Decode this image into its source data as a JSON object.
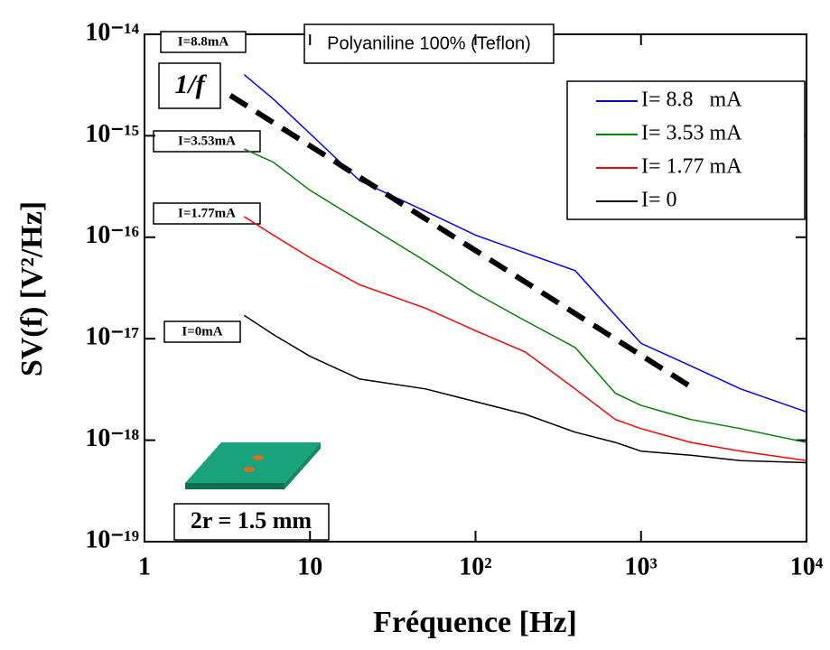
{
  "chart_data": {
    "type": "line",
    "xlabel": "Fréquence [Hz]",
    "ylabel": "SV(f) [V²/Hz]",
    "log_x": true,
    "log_y": true,
    "xlim": [
      1,
      10000
    ],
    "ylim": [
      1e-19,
      1e-14
    ],
    "xticks": [
      1,
      10,
      {
        "value": 100,
        "label": "10²"
      },
      {
        "value": 1000,
        "label": "10³"
      },
      {
        "value": 10000,
        "label": "10⁴"
      }
    ],
    "yticks": [
      {
        "value": 1e-19,
        "label": "10⁻¹⁹"
      },
      {
        "value": 1e-18,
        "label": "10⁻¹⁸"
      },
      {
        "value": 1e-17,
        "label": "10⁻¹⁷"
      },
      {
        "value": 1e-16,
        "label": "10⁻¹⁶"
      },
      {
        "value": 1e-15,
        "label": "10⁻¹⁵"
      },
      {
        "value": 1e-14,
        "label": "10⁻¹⁴"
      }
    ],
    "x": [
      4,
      6,
      10,
      20,
      50,
      100,
      200,
      400,
      700,
      1000,
      2000,
      4000,
      10000
    ],
    "series": [
      {
        "name": "I= 8.8   mA",
        "color": "#0000ff",
        "values": [
          4e-15,
          2.3e-15,
          1.05e-15,
          3.6e-16,
          1.8e-16,
          1.05e-16,
          7e-17,
          4.7e-17,
          1.7e-17,
          9e-18,
          5.4e-18,
          3.2e-18,
          1.9e-18
        ]
      },
      {
        "name": "I= 3.53 mA",
        "color": "#008000",
        "values": [
          7.4e-16,
          5.5e-16,
          2.9e-16,
          1.45e-16,
          5.8e-17,
          2.8e-17,
          1.5e-17,
          8.2e-18,
          2.9e-18,
          2.2e-18,
          1.6e-18,
          1.3e-18,
          9.5e-19
        ]
      },
      {
        "name": "I= 1.77 mA",
        "color": "#ff0000",
        "values": [
          1.6e-16,
          1.05e-16,
          6.3e-17,
          3.4e-17,
          2e-17,
          1.2e-17,
          7.4e-18,
          3.2e-18,
          1.6e-18,
          1.3e-18,
          9.5e-19,
          7.8e-19,
          6.3e-19
        ]
      },
      {
        "name": "I= 0",
        "color": "#000000",
        "values": [
          1.7e-17,
          1.1e-17,
          6.7e-18,
          4e-18,
          3.2e-18,
          2.4e-18,
          1.8e-18,
          1.2e-18,
          9.5e-19,
          7.8e-19,
          7.1e-19,
          6.3e-19,
          6e-19
        ]
      }
    ],
    "reference_line": {
      "x": [
        3.3,
        2100
      ],
      "values": [
        2.5e-15,
        3.2e-18
      ],
      "color": "#000000"
    },
    "annotations": [
      "I=8.8mA",
      "I=3.53mA",
      "I=1.77mA",
      "I=0mA",
      "Polyaniline 100% (Teflon)",
      "1/f",
      "2r = 1.5 mm"
    ]
  }
}
